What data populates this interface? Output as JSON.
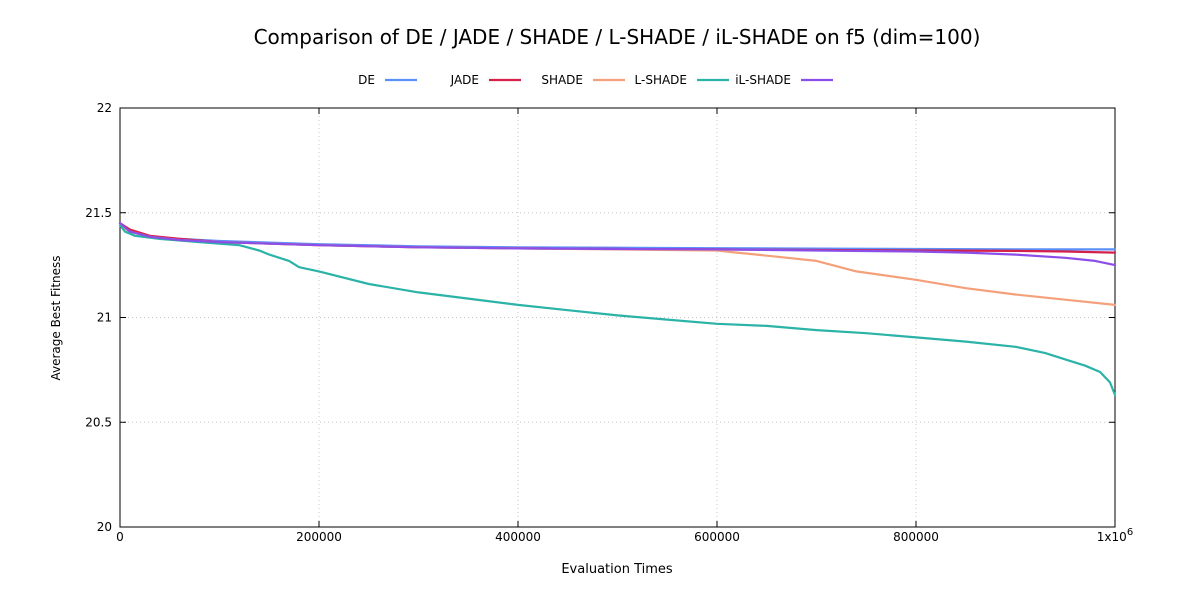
{
  "chart_data": {
    "type": "line",
    "title": "Comparison of DE / JADE / SHADE / L-SHADE / iL-SHADE on f5 (dim=100)",
    "xlabel": "Evaluation Times",
    "ylabel": "Average Best Fitness",
    "xlim": [
      0,
      1000000
    ],
    "ylim": [
      20,
      22
    ],
    "x_ticks": [
      0,
      200000,
      400000,
      600000,
      800000,
      1000000
    ],
    "x_tick_labels": [
      "0",
      "200000",
      "400000",
      "600000",
      "800000",
      "1x10"
    ],
    "x_tick_last_exponent": "6",
    "y_ticks": [
      20,
      20.5,
      21,
      21.5,
      22
    ],
    "y_tick_labels": [
      "20",
      "20.5",
      "21",
      "21.5",
      "22"
    ],
    "grid": true,
    "legend_position": "top",
    "series": [
      {
        "name": "DE",
        "color": "#5b8ff9",
        "points": [
          [
            0,
            21.45
          ],
          [
            10000,
            21.41
          ],
          [
            30000,
            21.385
          ],
          [
            60000,
            21.375
          ],
          [
            100000,
            21.365
          ],
          [
            200000,
            21.35
          ],
          [
            300000,
            21.34
          ],
          [
            400000,
            21.335
          ],
          [
            500000,
            21.333
          ],
          [
            600000,
            21.331
          ],
          [
            700000,
            21.329
          ],
          [
            800000,
            21.327
          ],
          [
            900000,
            21.325
          ],
          [
            1000000,
            21.325
          ]
        ]
      },
      {
        "name": "JADE",
        "color": "#d6204b",
        "points": [
          [
            0,
            21.45
          ],
          [
            10000,
            21.42
          ],
          [
            30000,
            21.39
          ],
          [
            60000,
            21.375
          ],
          [
            100000,
            21.36
          ],
          [
            200000,
            21.345
          ],
          [
            300000,
            21.335
          ],
          [
            400000,
            21.33
          ],
          [
            500000,
            21.327
          ],
          [
            600000,
            21.325
          ],
          [
            700000,
            21.322
          ],
          [
            800000,
            21.32
          ],
          [
            900000,
            21.318
          ],
          [
            950000,
            21.315
          ],
          [
            1000000,
            21.31
          ]
        ]
      },
      {
        "name": "SHADE",
        "color": "#f4a07a",
        "points": [
          [
            0,
            21.44
          ],
          [
            10000,
            21.41
          ],
          [
            30000,
            21.385
          ],
          [
            60000,
            21.37
          ],
          [
            100000,
            21.36
          ],
          [
            200000,
            21.345
          ],
          [
            300000,
            21.335
          ],
          [
            400000,
            21.33
          ],
          [
            500000,
            21.325
          ],
          [
            600000,
            21.32
          ],
          [
            620000,
            21.31
          ],
          [
            660000,
            21.29
          ],
          [
            700000,
            21.27
          ],
          [
            740000,
            21.22
          ],
          [
            800000,
            21.18
          ],
          [
            850000,
            21.14
          ],
          [
            900000,
            21.11
          ],
          [
            950000,
            21.085
          ],
          [
            1000000,
            21.06
          ]
        ]
      },
      {
        "name": "L-SHADE",
        "color": "#2ab3a6",
        "points": [
          [
            0,
            21.44
          ],
          [
            5000,
            21.41
          ],
          [
            15000,
            21.39
          ],
          [
            40000,
            21.375
          ],
          [
            80000,
            21.36
          ],
          [
            120000,
            21.345
          ],
          [
            140000,
            21.32
          ],
          [
            150000,
            21.3
          ],
          [
            170000,
            21.27
          ],
          [
            180000,
            21.24
          ],
          [
            200000,
            21.22
          ],
          [
            250000,
            21.16
          ],
          [
            300000,
            21.12
          ],
          [
            350000,
            21.09
          ],
          [
            400000,
            21.06
          ],
          [
            450000,
            21.035
          ],
          [
            500000,
            21.01
          ],
          [
            550000,
            20.99
          ],
          [
            600000,
            20.97
          ],
          [
            650000,
            20.96
          ],
          [
            700000,
            20.94
          ],
          [
            750000,
            20.925
          ],
          [
            800000,
            20.905
          ],
          [
            850000,
            20.885
          ],
          [
            900000,
            20.86
          ],
          [
            930000,
            20.83
          ],
          [
            950000,
            20.8
          ],
          [
            970000,
            20.77
          ],
          [
            985000,
            20.74
          ],
          [
            995000,
            20.69
          ],
          [
            1000000,
            20.63
          ]
        ]
      },
      {
        "name": "iL-SHADE",
        "color": "#8b4ee8",
        "points": [
          [
            0,
            21.45
          ],
          [
            10000,
            21.41
          ],
          [
            30000,
            21.385
          ],
          [
            60000,
            21.37
          ],
          [
            100000,
            21.36
          ],
          [
            200000,
            21.345
          ],
          [
            300000,
            21.335
          ],
          [
            400000,
            21.33
          ],
          [
            500000,
            21.327
          ],
          [
            600000,
            21.325
          ],
          [
            700000,
            21.32
          ],
          [
            800000,
            21.315
          ],
          [
            850000,
            21.31
          ],
          [
            900000,
            21.3
          ],
          [
            950000,
            21.285
          ],
          [
            980000,
            21.27
          ],
          [
            1000000,
            21.25
          ]
        ]
      }
    ]
  }
}
